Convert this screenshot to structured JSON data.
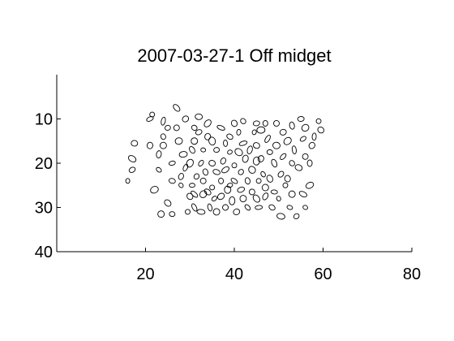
{
  "chart_data": {
    "type": "scatter",
    "title": "2007-03-27-1 Off midget",
    "xlabel": "",
    "ylabel": "",
    "xlim": [
      0,
      80
    ],
    "ylim": [
      0,
      40
    ],
    "y_reversed": true,
    "x_ticks": [
      20,
      40,
      60,
      80
    ],
    "y_ticks": [
      10,
      20,
      30,
      40
    ],
    "grid": false,
    "mark": "ellipse outline",
    "points": [
      [
        16,
        24
      ],
      [
        17,
        21.5
      ],
      [
        17,
        19
      ],
      [
        17.5,
        15.5
      ],
      [
        21,
        10
      ],
      [
        21.5,
        9
      ],
      [
        21,
        16
      ],
      [
        22,
        26
      ],
      [
        23,
        21.5
      ],
      [
        23,
        18
      ],
      [
        24,
        14
      ],
      [
        24,
        16
      ],
      [
        24,
        10.5
      ],
      [
        25,
        12
      ],
      [
        25,
        29
      ],
      [
        26,
        24
      ],
      [
        26,
        20
      ],
      [
        27,
        7.5
      ],
      [
        27,
        12
      ],
      [
        27.5,
        15
      ],
      [
        28,
        25
      ],
      [
        28,
        23
      ],
      [
        28.5,
        18
      ],
      [
        29,
        10
      ],
      [
        29,
        21
      ],
      [
        29.5,
        31
      ],
      [
        30,
        27.5
      ],
      [
        30,
        20
      ],
      [
        30.5,
        25
      ],
      [
        30.5,
        17
      ],
      [
        31,
        12
      ],
      [
        31,
        15
      ],
      [
        31,
        30
      ],
      [
        31.5,
        23
      ],
      [
        32,
        9.5
      ],
      [
        32,
        13
      ],
      [
        32.5,
        20
      ],
      [
        32.5,
        31
      ],
      [
        33,
        24
      ],
      [
        33,
        27
      ],
      [
        33,
        17
      ],
      [
        33.5,
        22
      ],
      [
        34,
        11
      ],
      [
        34,
        14
      ],
      [
        34.5,
        30
      ],
      [
        35,
        25.5
      ],
      [
        35,
        20
      ],
      [
        35,
        15
      ],
      [
        35.5,
        28
      ],
      [
        36,
        22
      ],
      [
        36,
        17
      ],
      [
        36,
        31
      ],
      [
        37,
        12
      ],
      [
        37,
        24
      ],
      [
        37,
        27.5
      ],
      [
        37.5,
        19.5
      ],
      [
        38,
        15.5
      ],
      [
        38,
        21.5
      ],
      [
        38,
        30
      ],
      [
        38.5,
        26
      ],
      [
        39,
        17.5
      ],
      [
        39,
        14
      ],
      [
        39.5,
        28.5
      ],
      [
        40,
        11
      ],
      [
        40,
        24
      ],
      [
        40,
        20.5
      ],
      [
        40.5,
        31
      ],
      [
        41,
        17.5
      ],
      [
        41,
        13
      ],
      [
        41.5,
        26
      ],
      [
        41.5,
        22
      ],
      [
        42,
        28
      ],
      [
        42,
        15.5
      ],
      [
        42,
        10.5
      ],
      [
        42.5,
        19
      ],
      [
        43,
        24
      ],
      [
        43,
        30
      ],
      [
        43.5,
        17
      ],
      [
        44,
        26.5
      ],
      [
        44,
        21.5
      ],
      [
        44.5,
        13
      ],
      [
        45,
        11
      ],
      [
        45,
        28
      ],
      [
        45,
        16
      ],
      [
        45.5,
        30
      ],
      [
        45.5,
        24
      ],
      [
        46,
        19
      ],
      [
        46,
        12.5
      ],
      [
        46.5,
        22.5
      ],
      [
        47,
        27.5
      ],
      [
        47,
        11
      ],
      [
        47,
        25.5
      ],
      [
        47.5,
        14.5
      ],
      [
        48,
        17.5
      ],
      [
        48,
        23.5
      ],
      [
        48.5,
        30
      ],
      [
        49,
        26.5
      ],
      [
        49,
        20
      ],
      [
        49.5,
        11
      ],
      [
        49.5,
        16
      ],
      [
        50,
        28
      ],
      [
        50.5,
        22.5
      ],
      [
        50.5,
        32
      ],
      [
        51,
        13
      ],
      [
        51,
        18.5
      ],
      [
        51.5,
        25
      ],
      [
        52,
        23.5
      ],
      [
        52,
        15
      ],
      [
        52.5,
        30
      ],
      [
        53,
        11.5
      ],
      [
        53,
        20
      ],
      [
        53,
        27
      ],
      [
        53.5,
        17
      ],
      [
        54,
        32
      ],
      [
        54.5,
        21
      ],
      [
        55,
        10
      ],
      [
        55.5,
        14.5
      ],
      [
        55.5,
        27
      ],
      [
        56,
        18.5
      ],
      [
        56,
        12
      ],
      [
        56,
        30
      ],
      [
        57,
        20
      ],
      [
        57,
        25
      ],
      [
        57.5,
        16
      ],
      [
        58,
        14
      ],
      [
        59,
        10.5
      ],
      [
        59.5,
        12.5
      ],
      [
        45,
        19.5
      ],
      [
        39,
        25
      ],
      [
        34,
        26.5
      ],
      [
        26,
        31.5
      ],
      [
        23.5,
        31.5
      ],
      [
        31,
        27
      ]
    ]
  }
}
